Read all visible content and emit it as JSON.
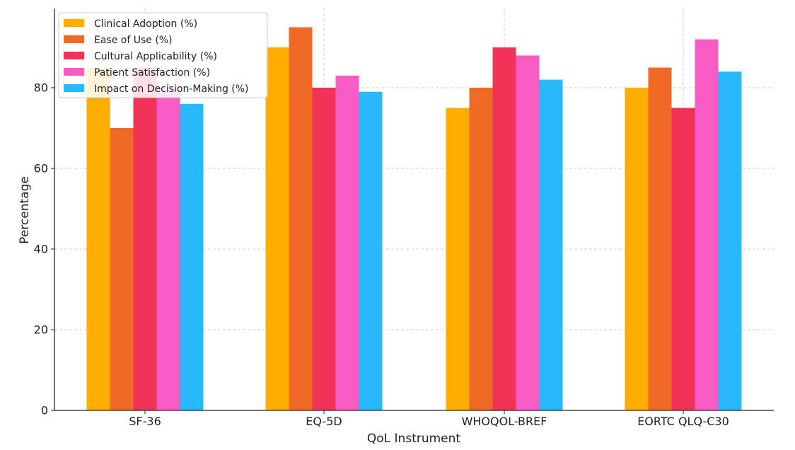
{
  "chart_data": {
    "type": "bar",
    "title": "",
    "xlabel": "QoL Instrument",
    "ylabel": "Percentage",
    "categories": [
      "SF-36",
      "EQ-5D",
      "WHOQOL-BREF",
      "EORTC QLQ-C30"
    ],
    "ylim": [
      0,
      100
    ],
    "yticks": [
      0,
      20,
      40,
      60,
      80
    ],
    "grid": true,
    "legend_position": "top-left",
    "series": [
      {
        "name": "Clinical Adoption (%)",
        "color": "#FFAE00",
        "values": [
          85,
          90,
          75,
          80
        ]
      },
      {
        "name": "Ease of Use (%)",
        "color": "#F06A25",
        "values": [
          70,
          95,
          80,
          85
        ]
      },
      {
        "name": "Cultural Applicability (%)",
        "color": "#F23358",
        "values": [
          85,
          80,
          90,
          75
        ]
      },
      {
        "name": "Patient Satisfaction (%)",
        "color": "#F95CC4",
        "values": [
          80,
          83,
          88,
          92
        ]
      },
      {
        "name": "Impact on Decision-Making (%)",
        "color": "#27B9FA",
        "values": [
          76,
          79,
          82,
          84
        ]
      }
    ]
  }
}
